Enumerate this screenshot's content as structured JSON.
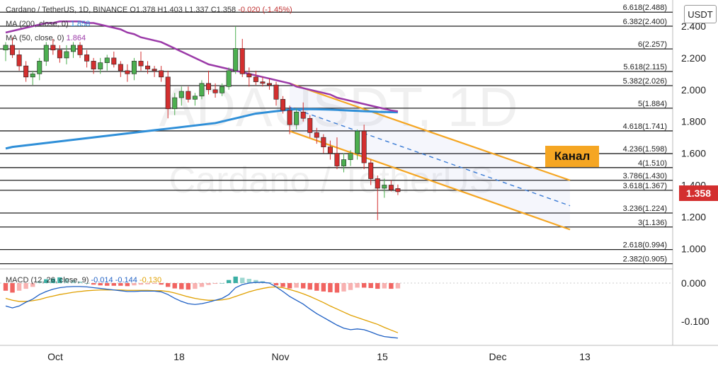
{
  "header": {
    "symbol_line": "Cardano / TetherUS, 1D, BINANCE",
    "o": "O1.378",
    "h": "H1.403",
    "l": "L1.337",
    "c": "C1.358",
    "change": "-0.020 (-1.45%)"
  },
  "legend": {
    "ma200_label": "MA (200, close, 0)",
    "ma200_value": "1.858",
    "ma50_label": "MA (50, close, 0)",
    "ma50_value": "1.864"
  },
  "watermark": {
    "ticker": "ADAUSDT, 1D",
    "name": "Cardano / TetherUS"
  },
  "currency_button": "USDT",
  "last_price": "1.358",
  "annotation": "Канал",
  "macd": {
    "title": "MACD (12, 26, close, 9)",
    "value1": "-0.014",
    "value2": "-0.144",
    "value3": "-0.130"
  },
  "colors": {
    "up": "#4caf50",
    "down": "#d32f2f",
    "ma50": "#9b3aa8",
    "ma200": "#2f8fd8",
    "channel": "#f5a623",
    "fib": "#222222",
    "macd_line": "#1f60c4",
    "signal_line": "#e0a000",
    "hist_pos": "#26a69a",
    "hist_neg": "#ef5350"
  },
  "chart_data": {
    "type": "candlestick",
    "y_axis": {
      "ticks": [
        "2.400",
        "2.200",
        "2.000",
        "1.800",
        "1.600",
        "1.400",
        "1.200",
        "1.000"
      ],
      "range": [
        0.88,
        2.5
      ]
    },
    "x_axis": {
      "ticks": [
        "Oct",
        "18",
        "Nov",
        "15",
        "Dec",
        "13"
      ]
    },
    "fib_levels": [
      {
        "label": "6.618(2.488)",
        "value": 2.488
      },
      {
        "label": "6.382(2.400)",
        "value": 2.4
      },
      {
        "label": "6(2.257)",
        "value": 2.257
      },
      {
        "label": "5.618(2.115)",
        "value": 2.115
      },
      {
        "label": "5.382(2.026)",
        "value": 2.026
      },
      {
        "label": "5(1.884)",
        "value": 1.884
      },
      {
        "label": "4.618(1.741)",
        "value": 1.741
      },
      {
        "label": "4.236(1.598)",
        "value": 1.598
      },
      {
        "label": "4(1.510)",
        "value": 1.51
      },
      {
        "label": "3.786(1.430)",
        "value": 1.43
      },
      {
        "label": "3.618(1.367)",
        "value": 1.367
      },
      {
        "label": "3.236(1.224)",
        "value": 1.224
      },
      {
        "label": "3(1.136)",
        "value": 1.136
      },
      {
        "label": "2.618(0.994)",
        "value": 0.994
      },
      {
        "label": "2.382(0.905)",
        "value": 0.905
      }
    ],
    "candles": [
      [
        2.25,
        2.3,
        2.18,
        2.28
      ],
      [
        2.28,
        2.33,
        2.2,
        2.22
      ],
      [
        2.22,
        2.25,
        2.12,
        2.15
      ],
      [
        2.15,
        2.18,
        2.05,
        2.08
      ],
      [
        2.08,
        2.12,
        2.03,
        2.1
      ],
      [
        2.1,
        2.2,
        2.06,
        2.18
      ],
      [
        2.18,
        2.3,
        2.15,
        2.28
      ],
      [
        2.28,
        2.32,
        2.22,
        2.25
      ],
      [
        2.25,
        2.28,
        2.17,
        2.2
      ],
      [
        2.2,
        2.28,
        2.16,
        2.24
      ],
      [
        2.24,
        2.3,
        2.2,
        2.28
      ],
      [
        2.28,
        2.3,
        2.2,
        2.22
      ],
      [
        2.22,
        2.25,
        2.14,
        2.18
      ],
      [
        2.18,
        2.2,
        2.1,
        2.13
      ],
      [
        2.13,
        2.2,
        2.1,
        2.17
      ],
      [
        2.17,
        2.22,
        2.12,
        2.2
      ],
      [
        2.2,
        2.24,
        2.14,
        2.16
      ],
      [
        2.16,
        2.18,
        2.08,
        2.12
      ],
      [
        2.12,
        2.16,
        2.05,
        2.1
      ],
      [
        2.1,
        2.2,
        2.06,
        2.18
      ],
      [
        2.18,
        2.24,
        2.12,
        2.15
      ],
      [
        2.15,
        2.18,
        2.1,
        2.13
      ],
      [
        2.13,
        2.15,
        2.08,
        2.12
      ],
      [
        2.12,
        2.15,
        2.05,
        2.08
      ],
      [
        2.08,
        2.12,
        1.82,
        1.88
      ],
      [
        1.88,
        1.98,
        1.84,
        1.95
      ],
      [
        1.95,
        2.02,
        1.9,
        1.99
      ],
      [
        1.99,
        2.02,
        1.92,
        1.94
      ],
      [
        1.94,
        1.98,
        1.9,
        1.96
      ],
      [
        1.96,
        2.06,
        1.94,
        2.04
      ],
      [
        2.04,
        2.12,
        1.97,
        2.0
      ],
      [
        2.0,
        2.04,
        1.95,
        1.98
      ],
      [
        1.98,
        2.04,
        1.96,
        2.02
      ],
      [
        2.02,
        2.14,
        2.0,
        2.12
      ],
      [
        2.12,
        2.4,
        2.1,
        2.26
      ],
      [
        2.26,
        2.32,
        2.08,
        2.1
      ],
      [
        2.1,
        2.14,
        2.02,
        2.08
      ],
      [
        2.08,
        2.12,
        2.03,
        2.05
      ],
      [
        2.05,
        2.08,
        2.02,
        2.04
      ],
      [
        2.04,
        2.07,
        2.0,
        2.03
      ],
      [
        2.03,
        2.05,
        1.9,
        1.94
      ],
      [
        1.94,
        1.96,
        1.85,
        1.87
      ],
      [
        1.87,
        1.9,
        1.72,
        1.78
      ],
      [
        1.78,
        1.88,
        1.75,
        1.86
      ],
      [
        1.86,
        1.92,
        1.8,
        1.82
      ],
      [
        1.82,
        1.84,
        1.7,
        1.73
      ],
      [
        1.73,
        1.76,
        1.66,
        1.7
      ],
      [
        1.7,
        1.72,
        1.6,
        1.64
      ],
      [
        1.64,
        1.68,
        1.56,
        1.6
      ],
      [
        1.6,
        1.7,
        1.5,
        1.52
      ],
      [
        1.52,
        1.6,
        1.48,
        1.56
      ],
      [
        1.56,
        1.62,
        1.52,
        1.6
      ],
      [
        1.6,
        1.75,
        1.56,
        1.74
      ],
      [
        1.74,
        1.78,
        1.5,
        1.54
      ],
      [
        1.54,
        1.56,
        1.4,
        1.44
      ],
      [
        1.44,
        1.46,
        1.18,
        1.38
      ],
      [
        1.38,
        1.44,
        1.32,
        1.4
      ],
      [
        1.4,
        1.43,
        1.36,
        1.37
      ],
      [
        1.378,
        1.403,
        1.337,
        1.358
      ]
    ],
    "ma50": [
      2.36,
      2.37,
      2.38,
      2.39,
      2.4,
      2.41,
      2.42,
      2.42,
      2.43,
      2.43,
      2.43,
      2.43,
      2.42,
      2.42,
      2.41,
      2.4,
      2.39,
      2.38,
      2.36,
      2.35,
      2.33,
      2.32,
      2.31,
      2.3,
      2.28,
      2.26,
      2.24,
      2.22,
      2.2,
      2.18,
      2.16,
      2.15,
      2.14,
      2.13,
      2.12,
      2.11,
      2.1,
      2.09,
      2.08,
      2.07,
      2.06,
      2.05,
      2.04,
      2.02,
      2.01,
      2.0,
      1.99,
      1.98,
      1.97,
      1.95,
      1.94,
      1.93,
      1.92,
      1.91,
      1.9,
      1.89,
      1.88,
      1.87,
      1.864
    ],
    "ma200": [
      1.63,
      1.64,
      1.645,
      1.65,
      1.655,
      1.66,
      1.665,
      1.67,
      1.675,
      1.68,
      1.685,
      1.69,
      1.695,
      1.7,
      1.705,
      1.71,
      1.715,
      1.72,
      1.725,
      1.73,
      1.735,
      1.74,
      1.745,
      1.75,
      1.755,
      1.76,
      1.765,
      1.77,
      1.775,
      1.78,
      1.785,
      1.79,
      1.8,
      1.81,
      1.82,
      1.83,
      1.84,
      1.85,
      1.855,
      1.86,
      1.865,
      1.87,
      1.875,
      1.877,
      1.878,
      1.878,
      1.877,
      1.876,
      1.875,
      1.873,
      1.871,
      1.869,
      1.867,
      1.865,
      1.863,
      1.861,
      1.86,
      1.859,
      1.858
    ],
    "macd_axis": {
      "ticks": [
        "0.000",
        "-0.100"
      ],
      "range": [
        -0.16,
        0.03
      ]
    },
    "macd": {
      "histogram": [
        -0.02,
        -0.025,
        -0.02,
        -0.015,
        -0.01,
        0.005,
        0.01,
        0.012,
        0.015,
        0.012,
        0.008,
        0.004,
        0.0,
        -0.004,
        -0.006,
        -0.007,
        -0.007,
        -0.007,
        -0.008,
        -0.006,
        -0.004,
        -0.003,
        -0.002,
        -0.004,
        -0.01,
        -0.014,
        -0.016,
        -0.017,
        -0.015,
        -0.01,
        -0.005,
        -0.002,
        0.0,
        0.008,
        0.017,
        0.014,
        0.011,
        0.008,
        0.005,
        0.002,
        -0.006,
        -0.01,
        -0.014,
        -0.012,
        -0.014,
        -0.017,
        -0.02,
        -0.022,
        -0.024,
        -0.025,
        -0.022,
        -0.018,
        -0.012,
        -0.012,
        -0.013,
        -0.015,
        -0.014,
        -0.015,
        -0.014
      ],
      "macd_line": [
        -0.06,
        -0.065,
        -0.06,
        -0.05,
        -0.042,
        -0.03,
        -0.022,
        -0.016,
        -0.012,
        -0.01,
        -0.009,
        -0.009,
        -0.01,
        -0.012,
        -0.014,
        -0.016,
        -0.018,
        -0.02,
        -0.022,
        -0.022,
        -0.021,
        -0.021,
        -0.021,
        -0.023,
        -0.03,
        -0.04,
        -0.048,
        -0.054,
        -0.056,
        -0.054,
        -0.05,
        -0.045,
        -0.04,
        -0.03,
        -0.012,
        -0.004,
        0.0,
        0.002,
        0.002,
        0.0,
        -0.01,
        -0.022,
        -0.035,
        -0.045,
        -0.055,
        -0.068,
        -0.08,
        -0.09,
        -0.1,
        -0.11,
        -0.118,
        -0.122,
        -0.12,
        -0.122,
        -0.128,
        -0.135,
        -0.14,
        -0.142,
        -0.144
      ],
      "signal_line": [
        -0.04,
        -0.045,
        -0.048,
        -0.048,
        -0.046,
        -0.043,
        -0.038,
        -0.034,
        -0.03,
        -0.027,
        -0.024,
        -0.022,
        -0.02,
        -0.019,
        -0.018,
        -0.018,
        -0.018,
        -0.018,
        -0.019,
        -0.019,
        -0.019,
        -0.019,
        -0.02,
        -0.02,
        -0.022,
        -0.026,
        -0.031,
        -0.036,
        -0.04,
        -0.043,
        -0.045,
        -0.045,
        -0.044,
        -0.041,
        -0.035,
        -0.029,
        -0.023,
        -0.018,
        -0.014,
        -0.011,
        -0.01,
        -0.012,
        -0.017,
        -0.022,
        -0.028,
        -0.035,
        -0.043,
        -0.051,
        -0.06,
        -0.068,
        -0.076,
        -0.084,
        -0.09,
        -0.096,
        -0.102,
        -0.108,
        -0.116,
        -0.123,
        -0.13
      ]
    }
  }
}
